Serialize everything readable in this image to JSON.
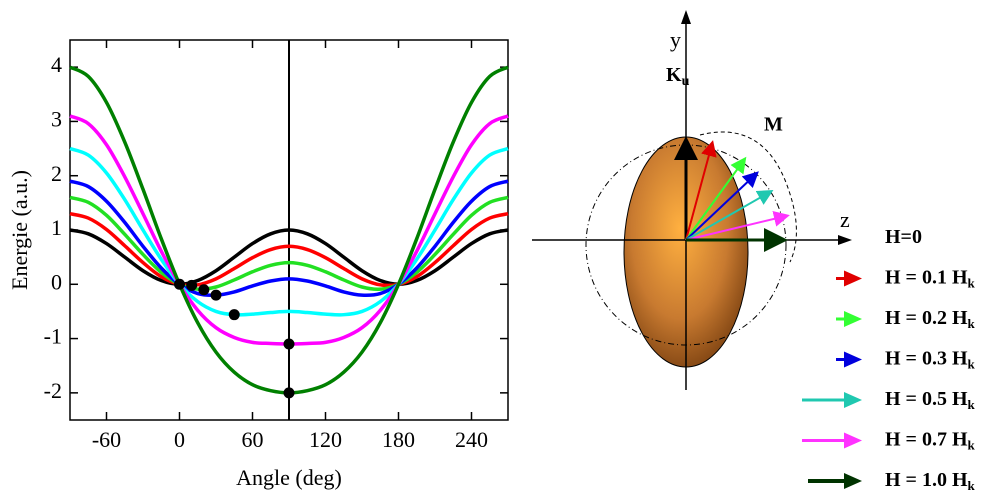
{
  "chart_data": {
    "type": "line",
    "x_label": "Angle (deg)",
    "y_label": "Energie (a.u.)",
    "x": [
      -90,
      -75,
      -60,
      -45,
      -30,
      -15,
      0,
      15,
      30,
      45,
      60,
      75,
      90,
      105,
      120,
      135,
      150,
      165,
      180,
      195,
      210,
      225,
      240,
      255,
      270
    ],
    "series": [
      {
        "color": "#000000",
        "values": [
          1,
          0.93,
          0.75,
          0.5,
          0.25,
          0.07,
          0,
          0.07,
          0.25,
          0.5,
          0.75,
          0.93,
          1,
          0.93,
          0.75,
          0.5,
          0.25,
          0.07,
          0,
          0.07,
          0.25,
          0.5,
          0.75,
          0.93,
          1
        ]
      },
      {
        "color": "#ff0000",
        "values": [
          1.3,
          1.22,
          1.01,
          0.71,
          0.4,
          0.14,
          0,
          -0.01,
          0.1,
          0.29,
          0.49,
          0.64,
          0.7,
          0.64,
          0.49,
          0.29,
          0.1,
          -0.01,
          0,
          0.14,
          0.4,
          0.71,
          1.01,
          1.22,
          1.3
        ]
      },
      {
        "color": "#22e022",
        "values": [
          1.6,
          1.51,
          1.27,
          0.92,
          0.55,
          0.22,
          0,
          -0.09,
          -0.05,
          0.08,
          0.23,
          0.35,
          0.4,
          0.35,
          0.23,
          0.08,
          -0.05,
          -0.09,
          0,
          0.22,
          0.55,
          0.92,
          1.27,
          1.51,
          1.6
        ]
      },
      {
        "color": "#0000ff",
        "values": [
          1.9,
          1.8,
          1.53,
          1.14,
          0.7,
          0.3,
          0,
          -0.17,
          -0.2,
          -0.14,
          -0.03,
          0.06,
          0.1,
          0.06,
          -0.03,
          -0.14,
          -0.2,
          -0.17,
          0,
          0.3,
          0.7,
          1.14,
          1.53,
          1.8,
          1.9
        ]
      },
      {
        "color": "#00ffff",
        "values": [
          2.5,
          2.38,
          2.05,
          1.56,
          1,
          0.46,
          0,
          -0.32,
          -0.5,
          -0.56,
          -0.55,
          -0.52,
          -0.5,
          -0.52,
          -0.55,
          -0.56,
          -0.5,
          -0.32,
          0,
          0.46,
          1,
          1.56,
          2.05,
          2.38,
          2.5
        ]
      },
      {
        "color": "#ff00ff",
        "values": [
          3.1,
          2.96,
          2.57,
          1.98,
          1.3,
          0.61,
          0,
          -0.48,
          -0.8,
          -0.98,
          -1.07,
          -1.09,
          -1.1,
          -1.09,
          -1.07,
          -0.98,
          -0.8,
          -0.48,
          0,
          0.61,
          1.3,
          1.98,
          2.57,
          2.96,
          3.1
        ]
      },
      {
        "color": "#008000",
        "values": [
          4,
          3.83,
          3.35,
          2.62,
          1.75,
          0.84,
          0,
          -0.71,
          -1.25,
          -1.62,
          -1.85,
          -1.96,
          -2,
          -1.96,
          -1.85,
          -1.62,
          -1.25,
          -0.71,
          0,
          0.84,
          1.75,
          2.62,
          3.35,
          3.83,
          4
        ]
      }
    ],
    "points": {
      "color": "#000000",
      "x": [
        0,
        10,
        20,
        30,
        45,
        90,
        90
      ],
      "y": [
        0,
        -0.02,
        -0.1,
        -0.2,
        -0.56,
        -1.1,
        -2
      ]
    },
    "vline": 90,
    "xlim": [
      -90,
      270
    ],
    "xticks": [
      -60,
      0,
      60,
      120,
      180,
      240
    ],
    "ylim": [
      -2.5,
      4.5
    ],
    "yticks": [
      -2,
      -1,
      0,
      1,
      2,
      3,
      4
    ]
  },
  "diagram": {
    "y_axis": "y",
    "z_axis": "z",
    "anisotropy": {
      "text": "K",
      "sub": "u"
    },
    "magnetization": "M",
    "legend": [
      {
        "text": "H=0",
        "sub": null,
        "color": null
      },
      {
        "text": "H = 0.1 H",
        "sub": "k",
        "color": "#e00000"
      },
      {
        "text": "H = 0.2 H",
        "sub": "k",
        "color": "#33ff33"
      },
      {
        "text": "H = 0.3 H",
        "sub": "k",
        "color": "#0000dd"
      },
      {
        "text": "H = 0.5 H",
        "sub": "k",
        "color": "#20c8b0"
      },
      {
        "text": "H = 0.7 H",
        "sub": "k",
        "color": "#ff33ff"
      },
      {
        "text": "H = 1.0 H",
        "sub": "k",
        "color": "#003300"
      }
    ]
  }
}
